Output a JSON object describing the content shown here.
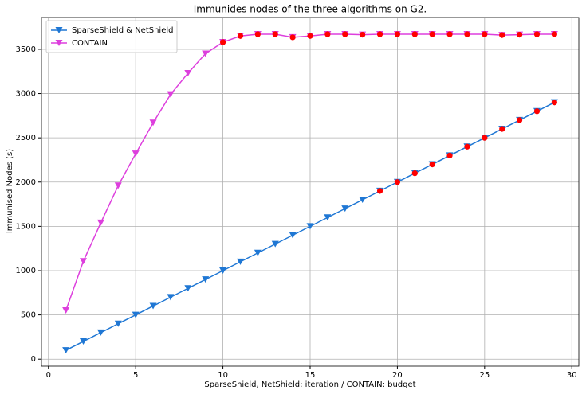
{
  "chart_data": {
    "type": "line",
    "title": "Immunides nodes of the three algorithms on G2.",
    "xlabel": "SparseShield, NetShield: iteration / CONTAIN: budget",
    "ylabel": "Immunised Nodes (s)",
    "xlim": [
      -0.4,
      30.4
    ],
    "xticks": [
      0,
      5,
      10,
      15,
      20,
      25,
      30
    ],
    "ylim": [
      -79,
      3859
    ],
    "yticks": [
      0,
      500,
      1000,
      1500,
      2000,
      2500,
      3000,
      3500
    ],
    "grid": true,
    "legend": "upper left",
    "series": [
      {
        "name": "SparseShield & NetShield",
        "color": "#1f77d4",
        "marker": "v",
        "line": true,
        "x": [
          1,
          2,
          3,
          4,
          5,
          6,
          7,
          8,
          9,
          10,
          11,
          12,
          13,
          14,
          15,
          16,
          17,
          18,
          19,
          20,
          21,
          22,
          23,
          24,
          25,
          26,
          27,
          28,
          29
        ],
        "values": [
          100,
          200,
          300,
          400,
          500,
          600,
          700,
          800,
          900,
          1000,
          1100,
          1200,
          1300,
          1400,
          1500,
          1600,
          1700,
          1800,
          1900,
          2000,
          2100,
          2200,
          2300,
          2400,
          2500,
          2600,
          2700,
          2800,
          2900
        ]
      },
      {
        "name": "CONTAIN",
        "color": "#dd3fdd",
        "marker": "v",
        "line": true,
        "x": [
          1,
          2,
          3,
          4,
          5,
          6,
          7,
          8,
          9,
          10,
          11,
          12,
          13,
          14,
          15,
          16,
          17,
          18,
          19,
          20,
          21,
          22,
          23,
          24,
          25,
          26,
          27,
          28,
          29
        ],
        "values": [
          550,
          1105,
          1540,
          1960,
          2320,
          2670,
          2990,
          3230,
          3450,
          3580,
          3650,
          3670,
          3670,
          3635,
          3650,
          3670,
          3670,
          3665,
          3670,
          3670,
          3670,
          3670,
          3670,
          3670,
          3670,
          3660,
          3665,
          3670,
          3670
        ]
      },
      {
        "color": "#ff0000",
        "marker": "o",
        "line": false,
        "x": [
          19,
          20,
          21,
          22,
          23,
          24,
          25,
          26,
          27,
          28,
          29
        ],
        "values": [
          1900,
          2000,
          2100,
          2200,
          2300,
          2400,
          2500,
          2600,
          2700,
          2800,
          2900
        ]
      },
      {
        "color": "#ff0000",
        "marker": "o",
        "line": false,
        "x": [
          10,
          11,
          12,
          13,
          14,
          15,
          16,
          17,
          18,
          19,
          20,
          21,
          22,
          23,
          24,
          25,
          26,
          27,
          28,
          29
        ],
        "values": [
          3580,
          3650,
          3670,
          3670,
          3635,
          3650,
          3670,
          3670,
          3665,
          3670,
          3670,
          3670,
          3670,
          3670,
          3670,
          3670,
          3660,
          3665,
          3670,
          3670
        ]
      }
    ]
  }
}
